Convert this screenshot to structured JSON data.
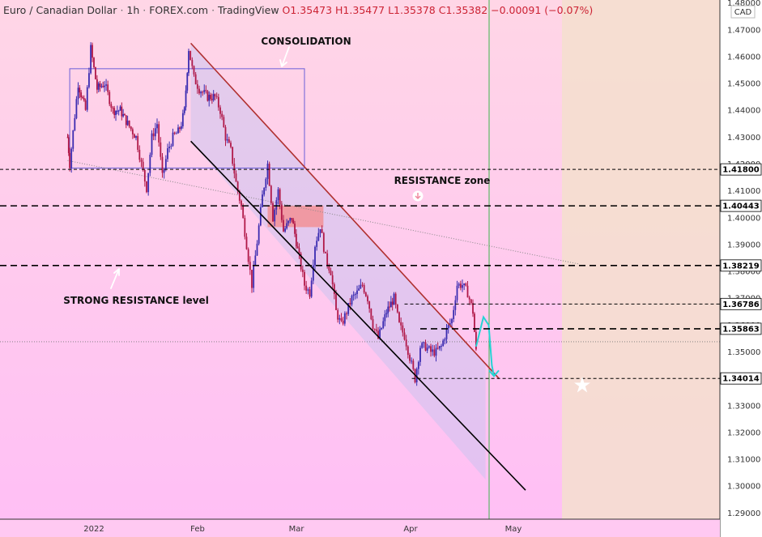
{
  "header": {
    "symbol": "Euro / Canadian Dollar",
    "interval": "1h",
    "exchange": "FOREX.com",
    "platform": "TradingView",
    "ohlc": "O1.35473 H1.35477 L1.35378 C1.35382 −0.00091 (−0.07%)"
  },
  "currency_badge": "CAD",
  "annotations": {
    "consolidation": "CONSOLIDATION",
    "resistance_zone": "RESISTANCE zone",
    "strong_resistance": "STRONG RESISTANCE level"
  },
  "chart_data": {
    "type": "candlestick",
    "title": "Euro / Canadian Dollar",
    "y_axis_ticks": [
      "1.48000",
      "1.47000",
      "1.46000",
      "1.45000",
      "1.44000",
      "1.43000",
      "1.42000",
      "1.41000",
      "1.40000",
      "1.39000",
      "1.38000",
      "1.37000",
      "1.36000",
      "1.35000",
      "1.34000",
      "1.33000",
      "1.32000",
      "1.31000",
      "1.30000",
      "1.29000"
    ],
    "ylim": [
      1.2877,
      1.4811
    ],
    "x_axis_labels": [
      "2022",
      "Feb",
      "Mar",
      "Apr",
      "May"
    ],
    "price_levels": [
      "1.41800",
      "1.40443",
      "1.38219",
      "1.36786",
      "1.35863",
      "1.34014"
    ],
    "price_path": [
      [
        -0.25,
        1.43
      ],
      [
        -0.23,
        1.42
      ],
      [
        -0.15,
        1.45
      ],
      [
        -0.08,
        1.44
      ],
      [
        -0.03,
        1.463
      ],
      [
        0.03,
        1.448
      ],
      [
        0.1,
        1.45
      ],
      [
        0.18,
        1.44
      ],
      [
        0.25,
        1.44
      ],
      [
        0.32,
        1.435
      ],
      [
        0.4,
        1.43
      ],
      [
        0.45,
        1.42
      ],
      [
        0.5,
        1.411
      ],
      [
        0.55,
        1.43
      ],
      [
        0.6,
        1.435
      ],
      [
        0.65,
        1.415
      ],
      [
        0.7,
        1.425
      ],
      [
        0.75,
        1.43
      ],
      [
        0.8,
        1.432
      ],
      [
        0.83,
        1.435
      ],
      [
        0.86,
        1.44
      ],
      [
        0.9,
        1.463
      ],
      [
        0.95,
        1.452
      ],
      [
        1.0,
        1.448
      ],
      [
        1.08,
        1.445
      ],
      [
        1.15,
        1.445
      ],
      [
        1.2,
        1.44
      ],
      [
        1.25,
        1.43
      ],
      [
        1.3,
        1.425
      ],
      [
        1.35,
        1.413
      ],
      [
        1.4,
        1.404
      ],
      [
        1.45,
        1.39
      ],
      [
        1.5,
        1.375
      ],
      [
        1.55,
        1.391
      ],
      [
        1.6,
        1.408
      ],
      [
        1.65,
        1.42
      ],
      [
        1.7,
        1.4
      ],
      [
        1.75,
        1.41
      ],
      [
        1.8,
        1.395
      ],
      [
        1.88,
        1.4
      ],
      [
        1.95,
        1.385
      ],
      [
        2.0,
        1.375
      ],
      [
        2.05,
        1.372
      ],
      [
        2.1,
        1.39
      ],
      [
        2.15,
        1.397
      ],
      [
        2.2,
        1.385
      ],
      [
        2.25,
        1.38
      ],
      [
        2.3,
        1.365
      ],
      [
        2.35,
        1.36
      ],
      [
        2.4,
        1.365
      ],
      [
        2.45,
        1.37
      ],
      [
        2.5,
        1.372
      ],
      [
        2.55,
        1.375
      ],
      [
        2.6,
        1.37
      ],
      [
        2.65,
        1.36
      ],
      [
        2.7,
        1.355
      ],
      [
        2.78,
        1.365
      ],
      [
        2.85,
        1.37
      ],
      [
        2.9,
        1.36
      ],
      [
        2.95,
        1.356
      ],
      [
        3.0,
        1.348
      ],
      [
        3.05,
        1.34
      ],
      [
        3.1,
        1.352
      ],
      [
        3.15,
        1.352
      ],
      [
        3.2,
        1.35
      ],
      [
        3.25,
        1.35
      ],
      [
        3.3,
        1.352
      ],
      [
        3.35,
        1.358
      ],
      [
        3.4,
        1.362
      ],
      [
        3.45,
        1.375
      ],
      [
        3.5,
        1.375
      ],
      [
        3.55,
        1.372
      ],
      [
        3.6,
        1.365
      ],
      [
        3.63,
        1.35
      ]
    ],
    "projection_path": [
      [
        3.63,
        1.352
      ],
      [
        3.7,
        1.363
      ],
      [
        3.75,
        1.36
      ],
      [
        3.78,
        1.345
      ],
      [
        3.8,
        1.341
      ]
    ],
    "channel_upper": [
      [
        0.92,
        1.465
      ],
      [
        3.85,
        1.34
      ]
    ],
    "channel_lower": [
      [
        0.92,
        1.4285
      ],
      [
        4.1,
        1.2985
      ]
    ],
    "diagonal_support": [
      [
        -0.25,
        1.4213
      ],
      [
        4.6,
        1.3828
      ]
    ],
    "consolidation_box": {
      "from": -0.23,
      "to": 2.0,
      "top": 1.4555,
      "bottom": 1.4185
    },
    "resistance_zone_box": {
      "from": 1.65,
      "to": 2.18,
      "top": 1.4045,
      "bottom": 1.3965
    },
    "target_date_fraction": 3.75
  }
}
